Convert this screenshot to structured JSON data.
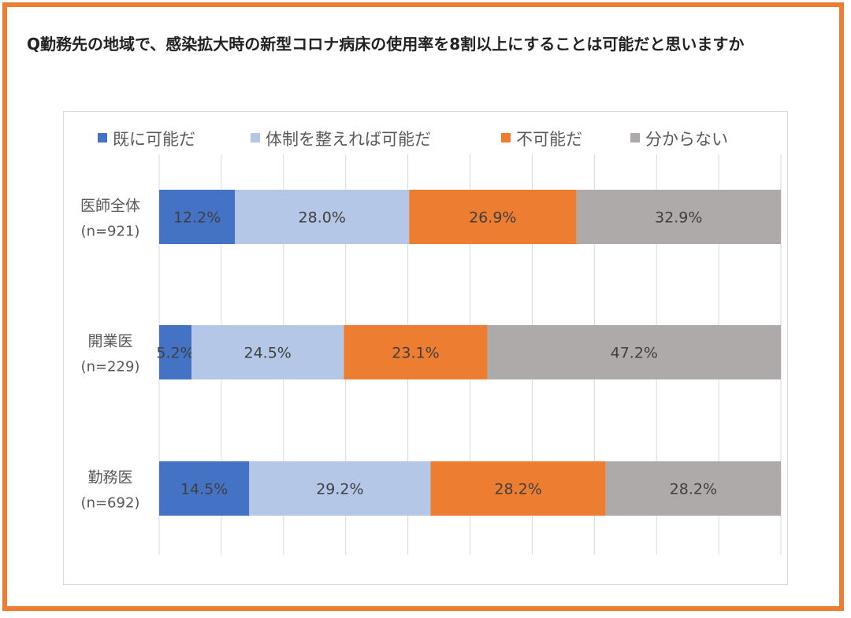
{
  "question": "Q勤務先の地域で、感染拡大時の新型コロナ病床の使用率を8割以上にすることは可能だと思いますか",
  "chart_data": {
    "type": "bar",
    "orientation": "horizontal",
    "stacked": true,
    "percent": true,
    "categories": [
      {
        "name": "医師全体",
        "n": "(n=921)"
      },
      {
        "name": "開業医",
        "n": "(n=229)"
      },
      {
        "name": "勤務医",
        "n": "(n=692)"
      }
    ],
    "series": [
      {
        "name": "既に可能だ",
        "color": "#4472C4",
        "values": [
          12.2,
          5.2,
          14.5
        ],
        "labels": [
          "12.2%",
          "5.2%",
          "14.5%"
        ]
      },
      {
        "name": "体制を整えれば可能だ",
        "color": "#B4C7E7",
        "values": [
          28.0,
          24.5,
          29.2
        ],
        "labels": [
          "28.0%",
          "24.5%",
          "29.2%"
        ]
      },
      {
        "name": "不可能だ",
        "color": "#ED7D31",
        "values": [
          26.9,
          23.1,
          28.2
        ],
        "labels": [
          "26.9%",
          "23.1%",
          "28.2%"
        ]
      },
      {
        "name": "分からない",
        "color": "#AEAAAA",
        "values": [
          32.9,
          47.2,
          28.2
        ],
        "labels": [
          "32.9%",
          "47.2%",
          "28.2%"
        ]
      }
    ],
    "xlim": [
      0,
      100
    ],
    "grid": true,
    "legend": "top"
  }
}
